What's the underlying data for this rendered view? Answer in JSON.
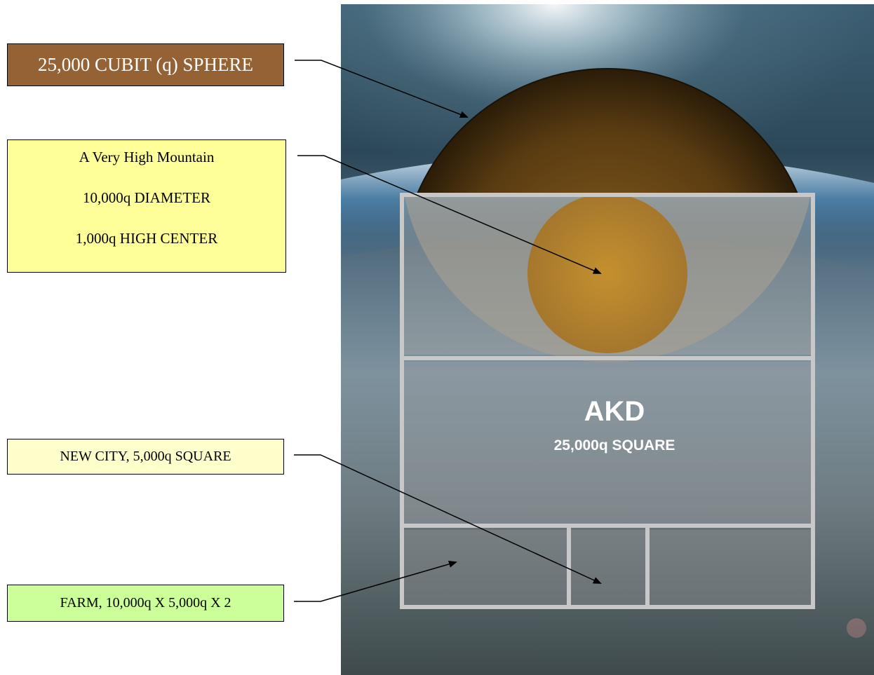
{
  "labels": {
    "sphere": "25,000 CUBIT (q) SPHERE",
    "mountain": [
      "A Very High Mountain",
      "10,000q DIAMETER",
      "1,000q HIGH CENTER"
    ],
    "city": "NEW CITY, 5,000q SQUARE",
    "farm": "FARM,  10,000q X 5,000q X 2"
  },
  "diagram": {
    "title": "AKD",
    "subtitle": "25,000q SQUARE"
  },
  "colors": {
    "sphere_box": "#956235",
    "mountain_box": "#ffff99",
    "city_box": "#ffffcc",
    "farm_box": "#ccff99",
    "grid_lines": "#c8c8c8",
    "mountain_fill": "#b07e32",
    "sphere_fill": "#4a3414"
  }
}
